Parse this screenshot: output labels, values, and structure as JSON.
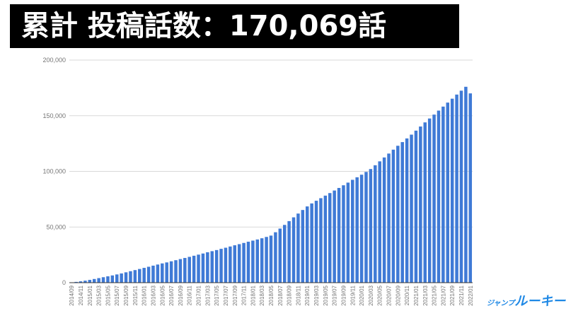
{
  "header": {
    "title": "累計 投稿話数：170,069話"
  },
  "logo": {
    "small": "ジャンプ",
    "big": "ルーキー!"
  },
  "colors": {
    "bar": "#3f7ad6",
    "grid": "#d9d9d9",
    "axis": "#333333",
    "tick": "#757575",
    "logo": "#1e88e5"
  },
  "chart_data": {
    "type": "bar",
    "title": "累計 投稿話数：170,069話",
    "xlabel": "",
    "ylabel": "",
    "ylim": [
      0,
      200000
    ],
    "yticks": [
      0,
      50000,
      100000,
      150000,
      200000
    ],
    "ytick_labels": [
      "0",
      "50,000",
      "100,000",
      "150,000",
      "200,000"
    ],
    "grid": true,
    "legend": "none",
    "categories": [
      "2014/09",
      "2014/10",
      "2014/11",
      "2014/12",
      "2015/01",
      "2015/02",
      "2015/03",
      "2015/04",
      "2015/05",
      "2015/06",
      "2015/07",
      "2015/08",
      "2015/09",
      "2015/10",
      "2015/11",
      "2015/12",
      "2016/01",
      "2016/02",
      "2016/03",
      "2016/04",
      "2016/05",
      "2016/06",
      "2016/07",
      "2016/08",
      "2016/09",
      "2016/10",
      "2016/11",
      "2016/12",
      "2017/01",
      "2017/02",
      "2017/03",
      "2017/04",
      "2017/05",
      "2017/06",
      "2017/07",
      "2017/08",
      "2017/09",
      "2017/10",
      "2017/11",
      "2017/12",
      "2018/01",
      "2018/02",
      "2018/03",
      "2018/04",
      "2018/05",
      "2018/06",
      "2018/07",
      "2018/08",
      "2018/09",
      "2018/10",
      "2018/11",
      "2018/12",
      "2019/01",
      "2019/02",
      "2019/03",
      "2019/04",
      "2019/05",
      "2019/06",
      "2019/07",
      "2019/08",
      "2019/09",
      "2019/10",
      "2019/11",
      "2019/12",
      "2020/01",
      "2020/02",
      "2020/03",
      "2020/04",
      "2020/05",
      "2020/06",
      "2020/07",
      "2020/08",
      "2020/09",
      "2020/10",
      "2020/11",
      "2020/12",
      "2021/01",
      "2021/02",
      "2021/03",
      "2021/04",
      "2021/05",
      "2021/06",
      "2021/07",
      "2021/08",
      "2021/09",
      "2021/10",
      "2021/11",
      "2021/12",
      "2022/01"
    ],
    "values": [
      300,
      700,
      1200,
      1800,
      2500,
      3300,
      4100,
      4900,
      5700,
      6500,
      7400,
      8300,
      9300,
      10300,
      11300,
      12300,
      13300,
      14300,
      15300,
      16300,
      17300,
      18200,
      19200,
      20200,
      21200,
      22200,
      23200,
      24200,
      25200,
      26200,
      27300,
      28300,
      29300,
      30400,
      31400,
      32500,
      33600,
      34600,
      35700,
      36800,
      37800,
      38800,
      39900,
      41100,
      42300,
      45300,
      48600,
      51900,
      55300,
      58700,
      62100,
      65300,
      68500,
      71200,
      73600,
      75900,
      78200,
      80500,
      82800,
      85100,
      87500,
      89900,
      92400,
      94700,
      97000,
      99500,
      102100,
      105500,
      109000,
      112500,
      116000,
      119500,
      123000,
      126300,
      129600,
      133000,
      136600,
      140300,
      144000,
      147500,
      151000,
      154600,
      158200,
      161800,
      165300,
      169000,
      172500,
      176000,
      170069
    ]
  }
}
